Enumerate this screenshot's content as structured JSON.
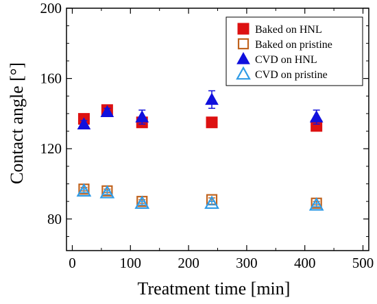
{
  "chart_data": {
    "type": "scatter",
    "title": "",
    "xlabel": "Treatment time [min]",
    "ylabel": "Contact angle [°]",
    "xlim": [
      -10,
      510
    ],
    "ylim": [
      62,
      200
    ],
    "x_ticks": [
      0,
      100,
      200,
      300,
      400,
      500
    ],
    "y_ticks": [
      80,
      120,
      160,
      200
    ],
    "grid": false,
    "legend_position": "top-right",
    "series": [
      {
        "name": "Baked on HNL",
        "marker": "square-filled",
        "color": "#dd1111",
        "points": [
          {
            "x": 20,
            "y": 137,
            "err": 2
          },
          {
            "x": 60,
            "y": 142,
            "err": 2
          },
          {
            "x": 120,
            "y": 135,
            "err": 2
          },
          {
            "x": 240,
            "y": 135,
            "err": 2
          },
          {
            "x": 420,
            "y": 133,
            "err": 2
          }
        ]
      },
      {
        "name": "Baked on pristine",
        "marker": "square-open",
        "color": "#c0631e",
        "points": [
          {
            "x": 20,
            "y": 97,
            "err": 1
          },
          {
            "x": 60,
            "y": 96,
            "err": 1
          },
          {
            "x": 120,
            "y": 90,
            "err": 1
          },
          {
            "x": 240,
            "y": 91,
            "err": 1
          },
          {
            "x": 420,
            "y": 89,
            "err": 1
          }
        ]
      },
      {
        "name": "CVD on HNL",
        "marker": "triangle-filled",
        "color": "#1010dd",
        "points": [
          {
            "x": 20,
            "y": 134,
            "err": 2
          },
          {
            "x": 60,
            "y": 141,
            "err": 2
          },
          {
            "x": 120,
            "y": 138,
            "err": 4
          },
          {
            "x": 240,
            "y": 148,
            "err": 5
          },
          {
            "x": 420,
            "y": 138,
            "err": 4
          }
        ]
      },
      {
        "name": "CVD on pristine",
        "marker": "triangle-open",
        "color": "#2f9be6",
        "points": [
          {
            "x": 20,
            "y": 96,
            "err": 1
          },
          {
            "x": 60,
            "y": 95,
            "err": 1
          },
          {
            "x": 120,
            "y": 89,
            "err": 1
          },
          {
            "x": 240,
            "y": 89,
            "err": 1
          },
          {
            "x": 420,
            "y": 88,
            "err": 1
          }
        ]
      }
    ]
  }
}
